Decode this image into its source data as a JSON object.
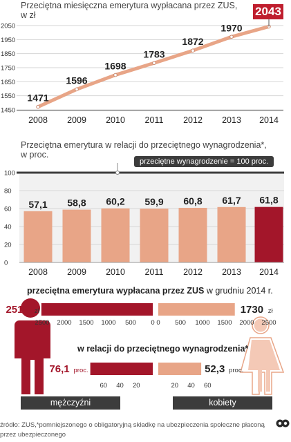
{
  "chart_data": [
    {
      "type": "line",
      "title": "Przeciętna miesięczna emerytura wypłacana przez ZUS,",
      "subtitle": "w zł",
      "x": [
        "2008",
        "2009",
        "2010",
        "2011",
        "2012",
        "2013",
        "2014"
      ],
      "values": [
        1471,
        1596,
        1698,
        1783,
        1872,
        1970,
        2043
      ],
      "ylim": [
        1450,
        2050
      ],
      "yticks": [
        "1450",
        "1550",
        "1650",
        "1750",
        "1850",
        "1950",
        "2050"
      ],
      "value_labels": [
        "1471",
        "1596",
        "1698",
        "1783",
        "1872",
        "1970",
        "2043"
      ],
      "grid": true,
      "line_color": "#e8a587",
      "highlight_color": "#bf1e2e"
    },
    {
      "type": "bar",
      "title": "Przeciętna emerytura w relacji do przeciętnego wynagrodzenia*,",
      "subtitle": "w proc.",
      "categories": [
        "2008",
        "2009",
        "2010",
        "2011",
        "2012",
        "2013",
        "2014"
      ],
      "values": [
        57.1,
        58.8,
        60.2,
        59.9,
        60.8,
        61.7,
        61.8
      ],
      "value_labels": [
        "57,1",
        "58,8",
        "60,2",
        "59,9",
        "60,8",
        "61,7",
        "61,8"
      ],
      "ylim": [
        0,
        100
      ],
      "yticks": [
        "0",
        "20",
        "40",
        "60",
        "80",
        "100"
      ],
      "reference_line": {
        "value": 100,
        "label": "przeciętne wynagrodzenie = 100 proc."
      },
      "bar_color": "#e8a587",
      "highlight_color": "#a3162a",
      "panel_color": "#f1f1f1"
    },
    {
      "type": "bar",
      "title": "przeciętna emerytura wypłacana przez ZUS",
      "title_suffix": "w grudniu 2014 r.",
      "orientation": "horizontal-butterfly",
      "series": [
        {
          "value": 2518,
          "label": "2518",
          "unit": "zł",
          "color": "#a3162a"
        },
        {
          "value": 1730,
          "label": "1730",
          "unit": "zł",
          "color": "#e8a587"
        }
      ],
      "xlim": [
        0,
        2500
      ],
      "left_ticks": [
        "2500",
        "2000",
        "1500",
        "1000",
        "500",
        "0"
      ],
      "right_ticks": [
        "0",
        "500",
        "1000",
        "1500",
        "2000",
        "2500"
      ]
    },
    {
      "type": "bar",
      "title": "w relacji do przeciętnego wynagrodzenia*",
      "orientation": "horizontal-butterfly",
      "series": [
        {
          "value": 76.1,
          "label": "76,1",
          "unit": "proc.",
          "color": "#a3162a"
        },
        {
          "value": 52.3,
          "label": "52,3",
          "unit": "proc.",
          "color": "#e8a587"
        }
      ],
      "xlim": [
        0,
        80
      ],
      "left_ticks": [
        "60",
        "40",
        "20"
      ],
      "right_ticks": [
        "20",
        "40",
        "60"
      ]
    }
  ],
  "labels": {
    "men": "mężczyźni",
    "women": "kobiety"
  },
  "footer": {
    "source_line1": "źródło: ZUS,*pomniejszonego o obligatoryjną składkę na ubezpieczenia społeczne płaconą",
    "source_line2": "przez ubezpieczonego",
    "logo": "PAP"
  },
  "colors": {
    "dark_red": "#a3162a",
    "salmon": "#e8a587",
    "dark_gray": "#3c3c3c",
    "panel_gray": "#f1f1f1"
  }
}
